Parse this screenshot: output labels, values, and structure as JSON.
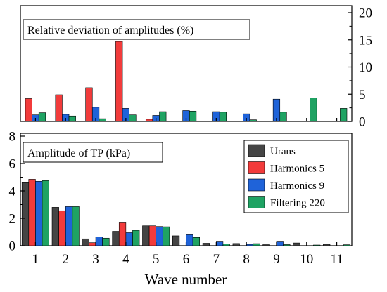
{
  "chart_data": [
    {
      "type": "bar",
      "title": "Relative deviation of amplitudes (%)",
      "xlabel": "",
      "ylabel": "",
      "y_axis_side": "right",
      "ylim": [
        0,
        20
      ],
      "yticks": [
        0,
        5,
        10,
        15,
        20
      ],
      "yticklabels": [
        "0",
        "5",
        "10",
        "15",
        "20"
      ],
      "categories": [
        "1",
        "2",
        "3",
        "4",
        "5",
        "6",
        "7",
        "8",
        "9",
        "10",
        "11"
      ],
      "series": [
        {
          "name": "Harmonics 5",
          "color": "#f23b3b",
          "slot": 0,
          "values": [
            4.2,
            4.9,
            6.2,
            14.7,
            0.4,
            null,
            null,
            null,
            null,
            null,
            null
          ]
        },
        {
          "name": "Harmonics 9",
          "color": "#1f63d9",
          "slot": 1,
          "values": [
            1.2,
            1.3,
            2.6,
            2.4,
            1.1,
            2.0,
            1.8,
            1.4,
            4.1,
            null,
            null
          ]
        },
        {
          "name": "Filtering 220",
          "color": "#1fa363",
          "slot": 2,
          "values": [
            1.6,
            1.0,
            0.5,
            1.2,
            1.8,
            1.9,
            1.7,
            0.3,
            1.7,
            4.3,
            2.4
          ]
        }
      ],
      "grid": false,
      "legend": false
    },
    {
      "type": "bar",
      "title": "Amplitude of TP (kPa)",
      "xlabel": "Wave number",
      "ylabel": "",
      "y_axis_side": "left",
      "ylim": [
        0,
        8
      ],
      "yticks": [
        0,
        2,
        4,
        6,
        8
      ],
      "yticklabels": [
        "0",
        "2",
        "4",
        "6",
        "8"
      ],
      "categories": [
        "1",
        "2",
        "3",
        "4",
        "5",
        "6",
        "7",
        "8",
        "9",
        "10",
        "11"
      ],
      "series": [
        {
          "name": "Urans",
          "color": "#454545",
          "slot": 0,
          "values": [
            4.65,
            2.8,
            0.5,
            1.05,
            1.45,
            0.72,
            0.18,
            0.16,
            0.12,
            0.2,
            0.1
          ]
        },
        {
          "name": "Harmonics 5",
          "color": "#f23b3b",
          "slot": 1,
          "values": [
            4.85,
            2.55,
            0.22,
            1.72,
            1.45,
            null,
            null,
            null,
            null,
            null,
            null
          ]
        },
        {
          "name": "Harmonics 9",
          "color": "#1f63d9",
          "slot": 2,
          "values": [
            4.7,
            2.85,
            0.65,
            0.95,
            1.4,
            0.8,
            0.28,
            0.1,
            0.28,
            null,
            null
          ]
        },
        {
          "name": "Filtering 220",
          "color": "#1fa363",
          "slot": 3,
          "values": [
            4.75,
            2.85,
            0.55,
            1.12,
            1.38,
            0.6,
            0.12,
            0.15,
            0.08,
            0.05,
            0.07
          ]
        }
      ],
      "grid": false,
      "legend": "top-right"
    }
  ]
}
